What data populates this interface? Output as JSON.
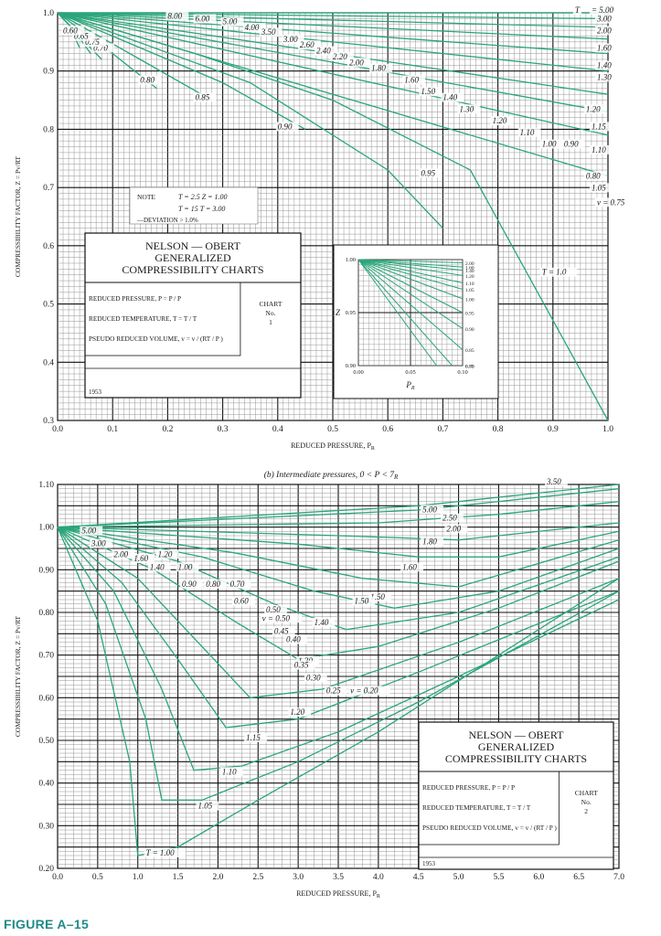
{
  "figure_label": "FIGURE A–15",
  "chart_data": [
    {
      "type": "line",
      "subtitle": "",
      "xlabel": "REDUCED PRESSURE, P",
      "xlabel_sub": "R",
      "ylabel": "COMPRESSIBILITY FACTOR, Z = Pv/RT",
      "xlim": [
        0,
        1.0
      ],
      "ylim": [
        0.3,
        1.0
      ],
      "x_ticks": [
        "0.0",
        "0.1",
        "0.2",
        "0.3",
        "0.4",
        "0.5",
        "0.6",
        "0.7",
        "0.8",
        "0.9",
        "1.0"
      ],
      "y_ticks": [
        "0.3",
        "0.4",
        "0.5",
        "0.6",
        "0.7",
        "0.8",
        "0.9",
        "1.0"
      ],
      "grid": true,
      "series": [
        {
          "name": "5.00",
          "x": [
            0,
            1.0
          ],
          "y": [
            1.0,
            1.0
          ]
        },
        {
          "name": "3.00",
          "x": [
            0,
            1.0
          ],
          "y": [
            1.0,
            0.99
          ]
        },
        {
          "name": "2.00",
          "x": [
            0,
            1.0
          ],
          "y": [
            1.0,
            0.975
          ]
        },
        {
          "name": "1.60",
          "x": [
            0,
            1.0
          ],
          "y": [
            1.0,
            0.955
          ]
        },
        {
          "name": "1.40",
          "x": [
            0,
            1.0
          ],
          "y": [
            1.0,
            0.93
          ]
        },
        {
          "name": "1.30",
          "x": [
            0,
            1.0
          ],
          "y": [
            1.0,
            0.9
          ]
        },
        {
          "name": "1.20",
          "x": [
            0,
            1.0
          ],
          "y": [
            1.0,
            0.86
          ]
        },
        {
          "name": "1.15",
          "x": [
            0,
            1.0
          ],
          "y": [
            1.0,
            0.83
          ]
        },
        {
          "name": "1.10",
          "x": [
            0,
            1.0
          ],
          "y": [
            1.0,
            0.79
          ]
        },
        {
          "name": "1.05",
          "x": [
            0,
            1.0
          ],
          "y": [
            1.0,
            0.72
          ]
        },
        {
          "name": "1.00",
          "x": [
            0,
            0.25,
            0.5,
            0.75,
            1.0
          ],
          "y": [
            1.0,
            0.93,
            0.85,
            0.73,
            0.3
          ]
        },
        {
          "name": "0.95",
          "x": [
            0,
            0.35,
            0.6,
            0.7
          ],
          "y": [
            1.0,
            0.88,
            0.73,
            0.63
          ]
        },
        {
          "name": "0.90",
          "x": [
            0,
            0.3,
            0.45
          ],
          "y": [
            1.0,
            0.88,
            0.8
          ]
        },
        {
          "name": "0.85",
          "x": [
            0,
            0.15,
            0.28
          ],
          "y": [
            1.0,
            0.92,
            0.85
          ]
        },
        {
          "name": "0.80",
          "x": [
            0,
            0.1,
            0.18
          ],
          "y": [
            1.0,
            0.93,
            0.87
          ]
        },
        {
          "name": "0.70",
          "x": [
            0,
            0.04,
            0.08
          ],
          "y": [
            1.0,
            0.96,
            0.92
          ]
        },
        {
          "name": "0.65",
          "x": [
            0,
            0.03,
            0.06
          ],
          "y": [
            1.0,
            0.97,
            0.93
          ]
        },
        {
          "name": "0.60",
          "x": [
            0,
            0.02,
            0.04
          ],
          "y": [
            1.0,
            0.98,
            0.94
          ]
        }
      ],
      "tr_labels": [
        {
          "t": "8.00",
          "x": 0.2,
          "y": 0.99
        },
        {
          "t": "6.00",
          "x": 0.25,
          "y": 0.985
        },
        {
          "t": "5.00",
          "x": 0.3,
          "y": 0.98
        },
        {
          "t": "4.00",
          "x": 0.34,
          "y": 0.97
        },
        {
          "t": "3.50",
          "x": 0.37,
          "y": 0.962
        },
        {
          "t": "3.00",
          "x": 0.41,
          "y": 0.95
        },
        {
          "t": "2.60",
          "x": 0.44,
          "y": 0.94
        },
        {
          "t": "2.40",
          "x": 0.47,
          "y": 0.93
        },
        {
          "t": "2.20",
          "x": 0.5,
          "y": 0.92
        },
        {
          "t": "2.00",
          "x": 0.53,
          "y": 0.91
        },
        {
          "t": "1.80",
          "x": 0.57,
          "y": 0.9
        },
        {
          "t": "1.60",
          "x": 0.63,
          "y": 0.88
        },
        {
          "t": "1.50",
          "x": 0.66,
          "y": 0.86
        },
        {
          "t": "1.40",
          "x": 0.7,
          "y": 0.85
        },
        {
          "t": "1.30",
          "x": 0.73,
          "y": 0.83
        },
        {
          "t": "1.20",
          "x": 0.79,
          "y": 0.81
        },
        {
          "t": "1.10",
          "x": 0.84,
          "y": 0.79
        },
        {
          "t": "1.00",
          "x": 0.88,
          "y": 0.77
        },
        {
          "t": "0.95",
          "x": 0.66,
          "y": 0.72
        },
        {
          "t": "0.90",
          "x": 0.4,
          "y": 0.8
        },
        {
          "t": "0.85",
          "x": 0.25,
          "y": 0.85
        },
        {
          "t": "0.80",
          "x": 0.15,
          "y": 0.88
        },
        {
          "t": "0.70",
          "x": 0.065,
          "y": 0.935
        },
        {
          "t": "0.75",
          "x": 0.05,
          "y": 0.945
        },
        {
          "t": "0.65",
          "x": 0.03,
          "y": 0.955
        },
        {
          "t": "0.60",
          "x": 0.01,
          "y": 0.965
        }
      ],
      "right_labels": [
        {
          "t": "T",
          "x": 0.94,
          "y": 1.0
        },
        {
          "t": "= 5.00",
          "x": 0.97,
          "y": 1.0
        },
        {
          "t": "3.00",
          "x": 0.98,
          "y": 0.985
        },
        {
          "t": "2.00",
          "x": 0.98,
          "y": 0.965
        },
        {
          "t": "1.60",
          "x": 0.98,
          "y": 0.935
        },
        {
          "t": "1.40",
          "x": 0.98,
          "y": 0.905
        },
        {
          "t": "1.30",
          "x": 0.98,
          "y": 0.885
        },
        {
          "t": "1.20",
          "x": 0.96,
          "y": 0.83
        },
        {
          "t": "1.15",
          "x": 0.97,
          "y": 0.8
        },
        {
          "t": "1.10",
          "x": 0.97,
          "y": 0.76
        },
        {
          "t": "0.90",
          "x": 0.92,
          "y": 0.77
        },
        {
          "t": "0.80",
          "x": 0.96,
          "y": 0.715
        },
        {
          "t": "1.05",
          "x": 0.97,
          "y": 0.695
        },
        {
          "t": "v = 0.75",
          "x": 0.98,
          "y": 0.67
        },
        {
          "t": "T = 1.0",
          "x": 0.88,
          "y": 0.55
        }
      ],
      "note": {
        "note_label": "NOTE",
        "line1": "T = 2.5   Z = 1.00",
        "line2": "T = 15   T = 3.00",
        "line3": "—DEVIATION > 1.0%"
      },
      "title_box": {
        "title1": "NELSON — OBERT",
        "title2": "GENERALIZED",
        "title3": "COMPRESSIBILITY CHARTS",
        "def1": "REDUCED PRESSURE,  P  =  P / P",
        "def2": "REDUCED TEMPERATURE,  T  =  T / T",
        "def3": "PSEUDO REDUCED VOLUME,  v  =  v / (RT / P )",
        "chart_label": "CHART",
        "chart_no": "No.",
        "chart_num": "1",
        "year": "1953"
      },
      "inset": {
        "xlim": [
          0,
          0.1
        ],
        "ylim": [
          0.9,
          1.0
        ],
        "x_ticks": [
          "0.00",
          "0.05",
          "0.10"
        ],
        "y_ticks": [
          "0.90",
          "0.95",
          "1.00"
        ],
        "xlabel": "P",
        "xlabel_sub": "R",
        "ylabel": "Z",
        "right_ticks": [
          "2.00",
          "1.60",
          "1.40",
          "1.20",
          "1.10",
          "1.05",
          "1.00",
          "0.95",
          "0.90",
          "0.85",
          "0.80",
          "0.75"
        ]
      }
    },
    {
      "type": "line",
      "subtitle": "(b)  Intermediate pressures, 0 < P  < 7",
      "subtitle_sub": "R",
      "xlabel": "REDUCED PRESSURE, P",
      "xlabel_sub": "R",
      "ylabel": "COMPRESSIBILITY FACTOR, Z = Pv/RT",
      "xlim": [
        0,
        7.0
      ],
      "ylim": [
        0.2,
        1.1
      ],
      "x_ticks": [
        "0.0",
        "0.5",
        "1.0",
        "1.5",
        "2.0",
        "2.5",
        "3.0",
        "3.5",
        "4.0",
        "4.5",
        "5.0",
        "5.5",
        "6.0",
        "6.5",
        "7.0"
      ],
      "y_ticks": [
        "0.20",
        "0.30",
        "0.40",
        "0.50",
        "0.60",
        "0.70",
        "0.80",
        "0.90",
        "1.00",
        "1.10"
      ],
      "grid": true,
      "series": [
        {
          "name": "1.00",
          "x": [
            0,
            0.5,
            0.9,
            1.0,
            1.5,
            2.5,
            4.0,
            5.5,
            7.0
          ],
          "y": [
            1.0,
            0.78,
            0.45,
            0.23,
            0.25,
            0.36,
            0.52,
            0.7,
            0.88
          ]
        },
        {
          "name": "1.05",
          "x": [
            0,
            0.6,
            1.1,
            1.3,
            1.8,
            3.0,
            4.5,
            7.0
          ],
          "y": [
            1.0,
            0.82,
            0.55,
            0.36,
            0.36,
            0.45,
            0.59,
            0.85
          ]
        },
        {
          "name": "1.10",
          "x": [
            0,
            0.7,
            1.3,
            1.7,
            2.3,
            3.5,
            5.0,
            7.0
          ],
          "y": [
            1.0,
            0.85,
            0.62,
            0.43,
            0.44,
            0.52,
            0.65,
            0.83
          ]
        },
        {
          "name": "1.15",
          "x": [
            0,
            0.8,
            1.5,
            2.1,
            3.0,
            4.5,
            7.0
          ],
          "y": [
            1.0,
            0.87,
            0.69,
            0.53,
            0.55,
            0.66,
            0.85
          ]
        },
        {
          "name": "1.20",
          "x": [
            0,
            1.0,
            1.8,
            2.4,
            3.3,
            5.0,
            7.0
          ],
          "y": [
            1.0,
            0.88,
            0.72,
            0.6,
            0.62,
            0.73,
            0.88
          ]
        },
        {
          "name": "1.30",
          "x": [
            0,
            1.2,
            2.2,
            3.0,
            4.0,
            5.5,
            7.0
          ],
          "y": [
            1.0,
            0.9,
            0.78,
            0.69,
            0.72,
            0.81,
            0.92
          ]
        },
        {
          "name": "1.40",
          "x": [
            0,
            1.5,
            2.7,
            3.6,
            5.0,
            7.0
          ],
          "y": [
            1.0,
            0.92,
            0.82,
            0.76,
            0.8,
            0.93
          ]
        },
        {
          "name": "1.50",
          "x": [
            0,
            1.8,
            3.2,
            4.2,
            5.5,
            7.0
          ],
          "y": [
            1.0,
            0.93,
            0.85,
            0.81,
            0.85,
            0.95
          ]
        },
        {
          "name": "1.60",
          "x": [
            0,
            2.2,
            3.8,
            5.0,
            7.0
          ],
          "y": [
            1.0,
            0.94,
            0.88,
            0.86,
            0.97
          ]
        },
        {
          "name": "1.80",
          "x": [
            0,
            3.0,
            4.5,
            5.5,
            7.0
          ],
          "y": [
            1.0,
            0.96,
            0.93,
            0.93,
            0.99
          ]
        },
        {
          "name": "2.00",
          "x": [
            0,
            3.5,
            5.0,
            7.0
          ],
          "y": [
            1.0,
            0.98,
            0.97,
            1.01
          ]
        },
        {
          "name": "2.50",
          "x": [
            0,
            4.0,
            5.5,
            7.0
          ],
          "y": [
            1.0,
            1.01,
            1.03,
            1.06
          ]
        },
        {
          "name": "3.50",
          "x": [
            0,
            4.5,
            7.0
          ],
          "y": [
            1.0,
            1.05,
            1.1
          ]
        },
        {
          "name": "5.00",
          "x": [
            0,
            4.5,
            7.0
          ],
          "y": [
            1.0,
            1.04,
            1.09
          ]
        }
      ],
      "tr_labels": [
        {
          "t": "5.00",
          "x": 4.55,
          "y": 1.035
        },
        {
          "t": "3.50",
          "x": 6.1,
          "y": 1.1
        },
        {
          "t": "2.50",
          "x": 4.8,
          "y": 1.015
        },
        {
          "t": "2.00",
          "x": 4.85,
          "y": 0.99
        },
        {
          "t": "1.80",
          "x": 4.55,
          "y": 0.96
        },
        {
          "t": "1.60",
          "x": 4.3,
          "y": 0.9
        },
        {
          "t": "1.50",
          "x": 3.9,
          "y": 0.83
        },
        {
          "t": "1.40",
          "x": 3.2,
          "y": 0.77
        },
        {
          "t": "1.30",
          "x": 3.0,
          "y": 0.68
        },
        {
          "t": "1.20",
          "x": 2.9,
          "y": 0.56
        },
        {
          "t": "1.15",
          "x": 2.35,
          "y": 0.5
        },
        {
          "t": "1.10",
          "x": 2.05,
          "y": 0.42
        },
        {
          "t": "1.05",
          "x": 1.75,
          "y": 0.34
        },
        {
          "t": "T = 1.00",
          "x": 1.1,
          "y": 0.23
        },
        {
          "t": "5.00",
          "x": 0.3,
          "y": 0.985
        },
        {
          "t": "3.00",
          "x": 0.42,
          "y": 0.955
        },
        {
          "t": "2.00",
          "x": 0.7,
          "y": 0.93
        },
        {
          "t": "1.60",
          "x": 0.95,
          "y": 0.92
        },
        {
          "t": "1.40",
          "x": 1.15,
          "y": 0.9
        },
        {
          "t": "1.20",
          "x": 1.25,
          "y": 0.93
        },
        {
          "t": "1.00",
          "x": 1.5,
          "y": 0.9
        },
        {
          "t": "0.90",
          "x": 1.55,
          "y": 0.86
        },
        {
          "t": "0.80",
          "x": 1.85,
          "y": 0.86
        },
        {
          "t": "0.70",
          "x": 2.15,
          "y": 0.86
        },
        {
          "t": "0.60",
          "x": 2.2,
          "y": 0.82
        },
        {
          "t": "0.50",
          "x": 2.6,
          "y": 0.8
        },
        {
          "t": "v = 0.50",
          "x": 2.55,
          "y": 0.78
        },
        {
          "t": "0.45",
          "x": 2.7,
          "y": 0.75
        },
        {
          "t": "0.40",
          "x": 2.85,
          "y": 0.73
        },
        {
          "t": "0.35",
          "x": 2.95,
          "y": 0.67
        },
        {
          "t": "0.30",
          "x": 3.1,
          "y": 0.64
        },
        {
          "t": "0.25",
          "x": 3.35,
          "y": 0.61
        },
        {
          "t": "v = 0.20",
          "x": 3.65,
          "y": 0.61
        },
        {
          "t": "1.50",
          "x": 3.7,
          "y": 0.82
        }
      ],
      "title_box": {
        "title1": "NELSON — OBERT",
        "title2": "GENERALIZED",
        "title3": "COMPRESSIBILITY CHARTS",
        "def1": "REDUCED PRESSURE,  P  =  P / P",
        "def2": "REDUCED TEMPERATURE,  T  =  T / T",
        "def3": "PSEUDO REDUCED VOLUME,  v  =  v / (RT / P )",
        "chart_label": "CHART",
        "chart_no": "No.",
        "chart_num": "2",
        "year": "1953"
      }
    }
  ],
  "colors": {
    "curve": "#2aa67a",
    "grid_minor": "#8a8a8a",
    "grid_major": "#111111",
    "text": "#1a1a1a",
    "figure_label": "#1f8a88"
  }
}
